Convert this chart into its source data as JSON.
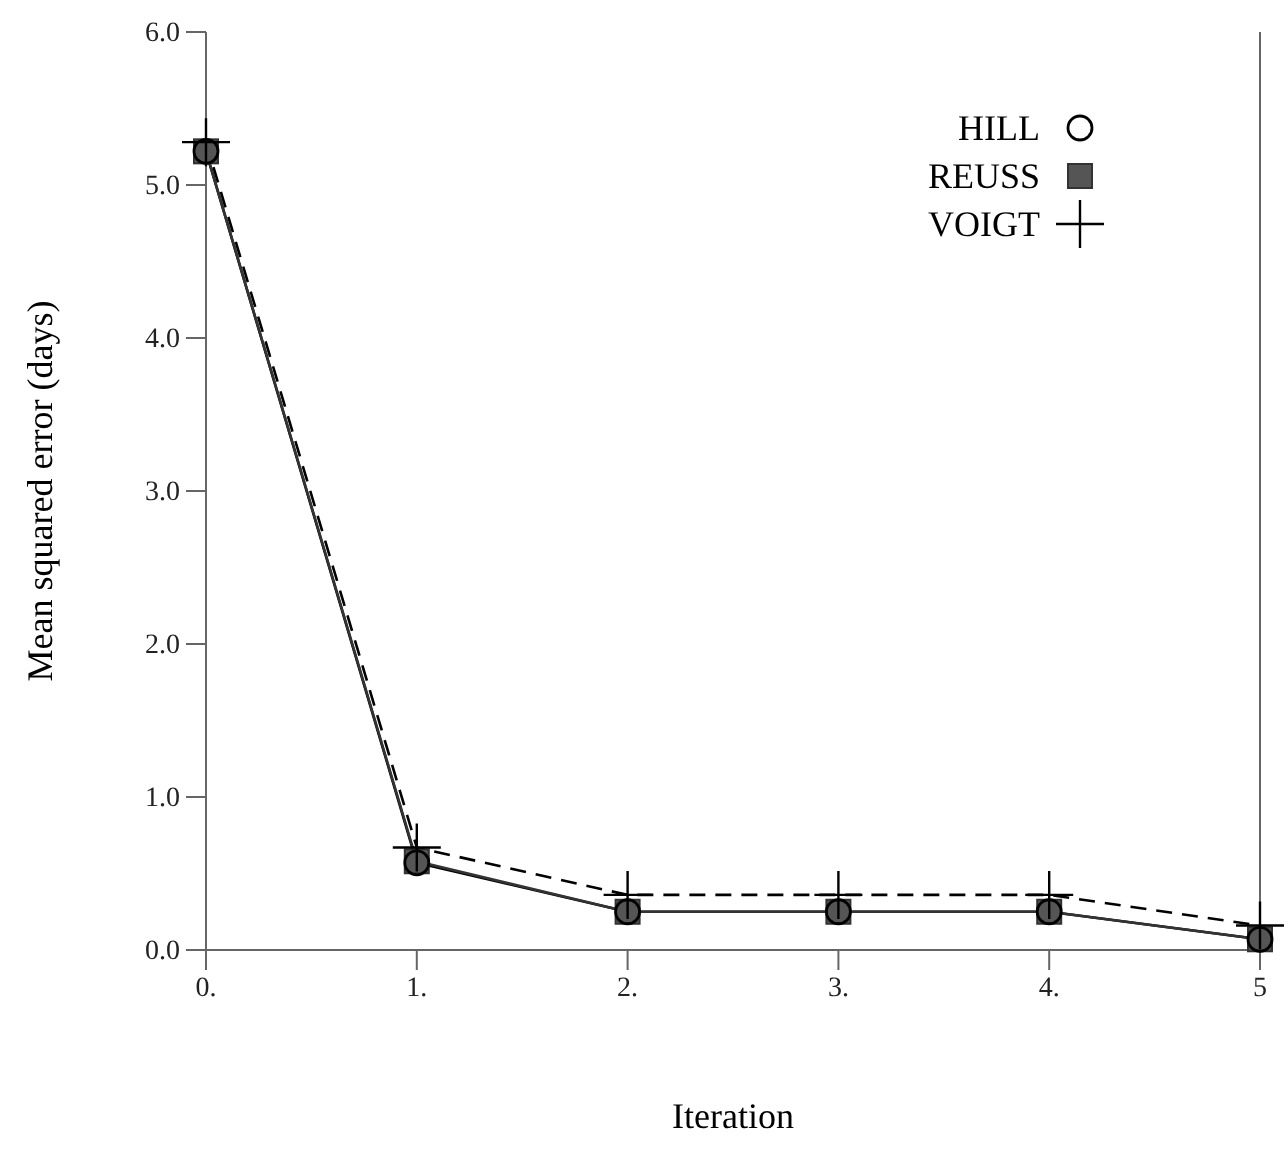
{
  "chart_data": {
    "type": "line",
    "xlabel": "Iteration",
    "ylabel": "Mean squared error (days)",
    "x": [
      0,
      1,
      2,
      3,
      4,
      5
    ],
    "xlim": [
      0,
      5
    ],
    "xticks": [
      {
        "value": 0,
        "label": "0."
      },
      {
        "value": 1,
        "label": "1."
      },
      {
        "value": 2,
        "label": "2."
      },
      {
        "value": 3,
        "label": "3."
      },
      {
        "value": 4,
        "label": "4."
      },
      5
    ],
    "ylim": [
      0,
      6
    ],
    "yticks": [
      {
        "value": 0,
        "label": "0.0"
      },
      {
        "value": 1,
        "label": "1.0"
      },
      {
        "value": 2,
        "label": "2.0"
      },
      {
        "value": 3,
        "label": "3.0"
      },
      {
        "value": 4,
        "label": "4.0"
      },
      {
        "value": 5,
        "label": "5.0"
      },
      {
        "value": 6,
        "label": "6.0"
      }
    ],
    "grid": false,
    "legend": "top right",
    "series": [
      {
        "name": "HILL",
        "color": "#000000",
        "marker": "circle",
        "line_style": "solid",
        "values": [
          5.22,
          0.57,
          0.25,
          0.25,
          0.25,
          0.07
        ]
      },
      {
        "name": "REUSS",
        "color": "#333333",
        "marker": "square",
        "line_style": "solid",
        "values": [
          5.22,
          0.58,
          0.25,
          0.25,
          0.25,
          0.07
        ]
      },
      {
        "name": "VOIGT",
        "color": "#000000",
        "marker": "cross",
        "line_style": "dashed",
        "values": [
          5.28,
          0.67,
          0.36,
          0.36,
          0.36,
          0.16
        ]
      }
    ]
  }
}
